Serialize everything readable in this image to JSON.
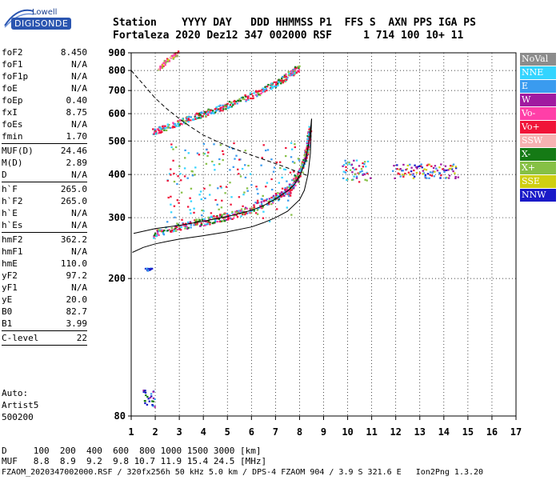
{
  "logo": {
    "top": "Lowell",
    "bottom": "DIGISONDE"
  },
  "header": {
    "line1": "Station    YYYY DAY   DDD HHMMSS P1  FFS S  AXN PPS IGA PS",
    "line2": "Fortaleza 2020 Dez12 347 002000 RSF     1 714 100 10+ 11"
  },
  "params": [
    {
      "k": "foF2",
      "v": "8.450"
    },
    {
      "k": "foF1",
      "v": "N/A"
    },
    {
      "k": "foF1p",
      "v": "N/A"
    },
    {
      "k": "foE",
      "v": "N/A"
    },
    {
      "k": "foEp",
      "v": "0.40"
    },
    {
      "k": "fxI",
      "v": "8.75"
    },
    {
      "k": "foEs",
      "v": "N/A"
    },
    {
      "k": "fmin",
      "v": "1.70"
    },
    {
      "k": "MUF(D)",
      "v": "24.46"
    },
    {
      "k": "M(D)",
      "v": "2.89"
    },
    {
      "k": "D",
      "v": "N/A"
    },
    {
      "k": "h`F",
      "v": "265.0"
    },
    {
      "k": "h`F2",
      "v": "265.0"
    },
    {
      "k": "h`E",
      "v": "N/A"
    },
    {
      "k": "h`Es",
      "v": "N/A"
    },
    {
      "k": "hmF2",
      "v": "362.2"
    },
    {
      "k": "hmF1",
      "v": "N/A"
    },
    {
      "k": "hmE",
      "v": "110.0"
    },
    {
      "k": "yF2",
      "v": "97.2"
    },
    {
      "k": "yF1",
      "v": "N/A"
    },
    {
      "k": "yE",
      "v": "20.0"
    },
    {
      "k": "B0",
      "v": "82.7"
    },
    {
      "k": "B1",
      "v": "3.99"
    },
    {
      "k": "C-level",
      "v": "22"
    }
  ],
  "separators_after": [
    "fmin",
    "D",
    "h`Es",
    "B1",
    "C-level"
  ],
  "auto": {
    "line1": "Auto:",
    "line2": "Artist5",
    "line3": "500200"
  },
  "legend": [
    {
      "label": "NoVal",
      "color": "#8c8c8c"
    },
    {
      "label": "NNE",
      "color": "#33d4ff"
    },
    {
      "label": "E",
      "color": "#3a9bef"
    },
    {
      "label": "W",
      "color": "#a01aa0"
    },
    {
      "label": "Vo-",
      "color": "#ff3fa8"
    },
    {
      "label": "Vo+",
      "color": "#f01438"
    },
    {
      "label": "SSW",
      "color": "#f7b2b2"
    },
    {
      "label": "X-",
      "color": "#157a15"
    },
    {
      "label": "X+",
      "color": "#86c045"
    },
    {
      "label": "SSE",
      "color": "#cfcf12"
    },
    {
      "label": "NNW",
      "color": "#1a1ac8"
    }
  ],
  "freq_table": {
    "line1": "D     100  200  400  600  800 1000 1500 3000 [km]",
    "line2": "MUF   8.8  8.9  9.2  9.8 10.7 11.9 15.4 24.5 [MHz]"
  },
  "footer": "FZAOM_2020347002000.RSF / 320fx256h 50 kHz 5.0 km / DPS-4 FZAOM 904 / 3.9 S 321.6 E   Ion2Png 1.3.20",
  "chart_data": {
    "type": "scatter",
    "x_ticks": [
      "1",
      "2",
      "3",
      "4",
      "5",
      "6",
      "7",
      "8",
      "9",
      "10",
      "11",
      "12",
      "13",
      "14",
      "15",
      "16",
      "17"
    ],
    "y_ticks": [
      "80",
      "200",
      "300",
      "400",
      "500",
      "600",
      "700",
      "800",
      "900"
    ],
    "xlim": [
      1,
      17
    ],
    "ylim": [
      80,
      900
    ],
    "y_scale": "log",
    "grid": "dotted",
    "profile_curve": [
      [
        1.05,
        238
      ],
      [
        1.5,
        246
      ],
      [
        2,
        252
      ],
      [
        2.5,
        256
      ],
      [
        3,
        260
      ],
      [
        4,
        266
      ],
      [
        5,
        273
      ],
      [
        6,
        282
      ],
      [
        6.5,
        290
      ],
      [
        7,
        300
      ],
      [
        7.5,
        313
      ],
      [
        8,
        338
      ],
      [
        8.2,
        360
      ],
      [
        8.35,
        400
      ],
      [
        8.45,
        460
      ],
      [
        8.5,
        580
      ]
    ],
    "trace_curve": [
      [
        1.1,
        270
      ],
      [
        2,
        279
      ],
      [
        3,
        285
      ],
      [
        4,
        293
      ],
      [
        5,
        302
      ],
      [
        6,
        315
      ],
      [
        6.5,
        325
      ],
      [
        7,
        340
      ],
      [
        7.5,
        358
      ],
      [
        7.8,
        375
      ],
      [
        8.05,
        402
      ],
      [
        8.25,
        440
      ],
      [
        8.4,
        500
      ],
      [
        8.5,
        580
      ]
    ],
    "muf_curve": [
      [
        1,
        800
      ],
      [
        1.5,
        730
      ],
      [
        2,
        665
      ],
      [
        2.5,
        618
      ],
      [
        3,
        580
      ],
      [
        3.5,
        548
      ],
      [
        4,
        520
      ],
      [
        5,
        483
      ],
      [
        6,
        455
      ],
      [
        7,
        430
      ],
      [
        7.5,
        418
      ],
      [
        8,
        405
      ],
      [
        8.3,
        398
      ]
    ],
    "trace_f2_low": [
      [
        1.9,
        268
      ],
      [
        3,
        283
      ],
      [
        4,
        292
      ],
      [
        5,
        302
      ],
      [
        6,
        316
      ],
      [
        7,
        342
      ],
      [
        7.6,
        362
      ],
      [
        8,
        400
      ],
      [
        8.2,
        435
      ],
      [
        8.35,
        480
      ],
      [
        8.45,
        540
      ]
    ],
    "trace_f2_2hop": [
      [
        1.9,
        530
      ],
      [
        3,
        565
      ],
      [
        4,
        597
      ],
      [
        5,
        632
      ],
      [
        6,
        676
      ],
      [
        7,
        730
      ],
      [
        7.5,
        770
      ],
      [
        8,
        815
      ]
    ],
    "trace_f2_3hop": [
      [
        2.1,
        800
      ],
      [
        2.5,
        855
      ],
      [
        3,
        900
      ]
    ],
    "clusters": [
      {
        "x": [
          2.5,
          8
        ],
        "y": [
          290,
          500
        ],
        "colors": [
          "E",
          "NNE",
          "X+",
          "Vo+"
        ]
      },
      {
        "x": [
          9.8,
          11
        ],
        "y": [
          380,
          440
        ],
        "colors": [
          "NNE",
          "E",
          "Vo+",
          "W",
          "X+"
        ]
      },
      {
        "x": [
          11.8,
          14.6
        ],
        "y": [
          390,
          430
        ],
        "colors": [
          "NNW",
          "E",
          "W",
          "SSE",
          "Vo+"
        ]
      },
      {
        "x": [
          1.5,
          2
        ],
        "y": [
          85,
          95
        ],
        "colors": [
          "W",
          "NNW",
          "E",
          "X-"
        ]
      },
      {
        "x": [
          1.6,
          1.9
        ],
        "y": [
          210,
          214
        ],
        "colors": [
          "NNW",
          "E"
        ]
      }
    ]
  }
}
